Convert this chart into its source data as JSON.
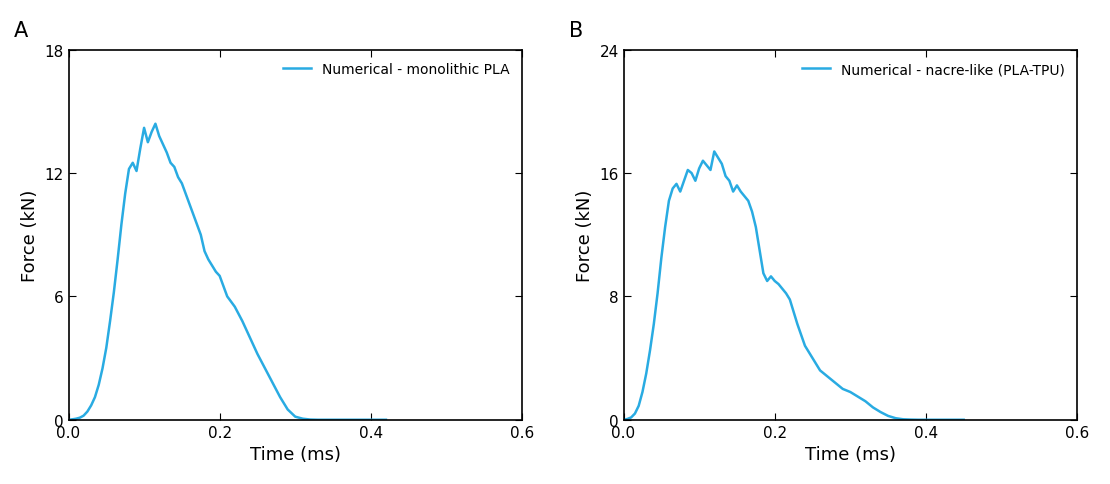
{
  "line_color": "#29ABE2",
  "background_color": "#ffffff",
  "label_A": "A",
  "label_B": "B",
  "legend_A": "Numerical - monolithic PLA",
  "legend_B": "Numerical - nacre-like (PLA-TPU)",
  "xlabel": "Time (ms)",
  "ylabel": "Force (kN)",
  "xlim": [
    0.0,
    0.6
  ],
  "ylim_A": [
    0,
    18
  ],
  "ylim_B": [
    0,
    24
  ],
  "yticks_A": [
    0,
    6,
    12,
    18
  ],
  "yticks_B": [
    0,
    8,
    16,
    24
  ],
  "xticks": [
    0.0,
    0.2,
    0.4,
    0.6
  ],
  "linewidth": 1.8,
  "curve_A_x": [
    0.0,
    0.005,
    0.01,
    0.015,
    0.02,
    0.025,
    0.03,
    0.035,
    0.04,
    0.045,
    0.05,
    0.055,
    0.06,
    0.065,
    0.07,
    0.075,
    0.08,
    0.085,
    0.09,
    0.095,
    0.1,
    0.105,
    0.11,
    0.115,
    0.12,
    0.125,
    0.13,
    0.135,
    0.14,
    0.145,
    0.15,
    0.155,
    0.16,
    0.165,
    0.17,
    0.175,
    0.18,
    0.185,
    0.19,
    0.195,
    0.2,
    0.21,
    0.22,
    0.23,
    0.24,
    0.25,
    0.26,
    0.27,
    0.28,
    0.29,
    0.3,
    0.31,
    0.32,
    0.33,
    0.34,
    0.35,
    0.36,
    0.37,
    0.38,
    0.39,
    0.4,
    0.41,
    0.42
  ],
  "curve_A_y": [
    0.0,
    0.02,
    0.05,
    0.1,
    0.2,
    0.4,
    0.7,
    1.1,
    1.7,
    2.5,
    3.5,
    4.8,
    6.2,
    7.8,
    9.5,
    11.0,
    12.2,
    12.5,
    12.1,
    13.2,
    14.2,
    13.5,
    14.0,
    14.4,
    13.8,
    13.4,
    13.0,
    12.5,
    12.3,
    11.8,
    11.5,
    11.0,
    10.5,
    10.0,
    9.5,
    9.0,
    8.2,
    7.8,
    7.5,
    7.2,
    7.0,
    6.0,
    5.5,
    4.8,
    4.0,
    3.2,
    2.5,
    1.8,
    1.1,
    0.5,
    0.15,
    0.05,
    0.01,
    0.0,
    0.0,
    0.0,
    0.0,
    0.0,
    0.0,
    0.0,
    0.0,
    0.0,
    0.0
  ],
  "curve_B_x": [
    0.0,
    0.005,
    0.01,
    0.015,
    0.02,
    0.025,
    0.03,
    0.035,
    0.04,
    0.045,
    0.05,
    0.055,
    0.06,
    0.065,
    0.07,
    0.075,
    0.08,
    0.085,
    0.09,
    0.095,
    0.1,
    0.105,
    0.11,
    0.115,
    0.12,
    0.125,
    0.13,
    0.135,
    0.14,
    0.145,
    0.15,
    0.155,
    0.16,
    0.165,
    0.17,
    0.175,
    0.18,
    0.185,
    0.19,
    0.195,
    0.2,
    0.205,
    0.21,
    0.215,
    0.22,
    0.225,
    0.23,
    0.235,
    0.24,
    0.25,
    0.26,
    0.27,
    0.28,
    0.29,
    0.3,
    0.31,
    0.32,
    0.33,
    0.34,
    0.35,
    0.36,
    0.37,
    0.38,
    0.39,
    0.4,
    0.41,
    0.42,
    0.43,
    0.44,
    0.45
  ],
  "curve_B_y": [
    0.0,
    0.05,
    0.15,
    0.4,
    0.9,
    1.8,
    3.0,
    4.5,
    6.2,
    8.2,
    10.5,
    12.5,
    14.2,
    15.0,
    15.3,
    14.8,
    15.5,
    16.2,
    16.0,
    15.5,
    16.3,
    16.8,
    16.5,
    16.2,
    17.4,
    17.0,
    16.6,
    15.8,
    15.5,
    14.8,
    15.2,
    14.8,
    14.5,
    14.2,
    13.5,
    12.5,
    11.0,
    9.5,
    9.0,
    9.3,
    9.0,
    8.8,
    8.5,
    8.2,
    7.8,
    7.0,
    6.2,
    5.5,
    4.8,
    4.0,
    3.2,
    2.8,
    2.4,
    2.0,
    1.8,
    1.5,
    1.2,
    0.8,
    0.5,
    0.25,
    0.1,
    0.03,
    0.01,
    0.0,
    0.0,
    0.0,
    0.0,
    0.0,
    0.0,
    0.0
  ]
}
